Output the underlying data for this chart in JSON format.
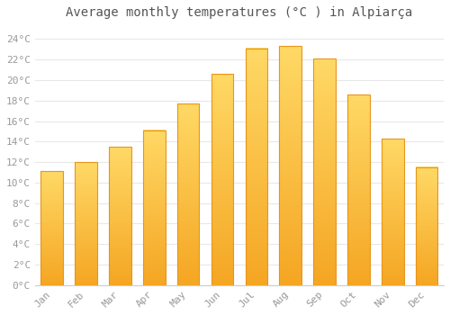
{
  "months": [
    "Jan",
    "Feb",
    "Mar",
    "Apr",
    "May",
    "Jun",
    "Jul",
    "Aug",
    "Sep",
    "Oct",
    "Nov",
    "Dec"
  ],
  "temperatures": [
    11.1,
    12.0,
    13.5,
    15.1,
    17.7,
    20.6,
    23.1,
    23.3,
    22.1,
    18.6,
    14.3,
    11.5
  ],
  "bar_color_top": "#FFD966",
  "bar_color_bottom": "#F5A623",
  "bar_edge_color": "#E8951A",
  "title": "Average monthly temperatures (°C ) in Alpiarça",
  "ylabel_ticks": [
    "0°C",
    "2°C",
    "4°C",
    "6°C",
    "8°C",
    "10°C",
    "12°C",
    "14°C",
    "16°C",
    "18°C",
    "20°C",
    "22°C",
    "24°C"
  ],
  "ytick_values": [
    0,
    2,
    4,
    6,
    8,
    10,
    12,
    14,
    16,
    18,
    20,
    22,
    24
  ],
  "ylim": [
    0,
    25.5
  ],
  "background_color": "#ffffff",
  "plot_bg_color": "#ffffff",
  "grid_color": "#e8e8e8",
  "title_fontsize": 10,
  "tick_fontsize": 8,
  "title_color": "#555555",
  "tick_color": "#999999"
}
